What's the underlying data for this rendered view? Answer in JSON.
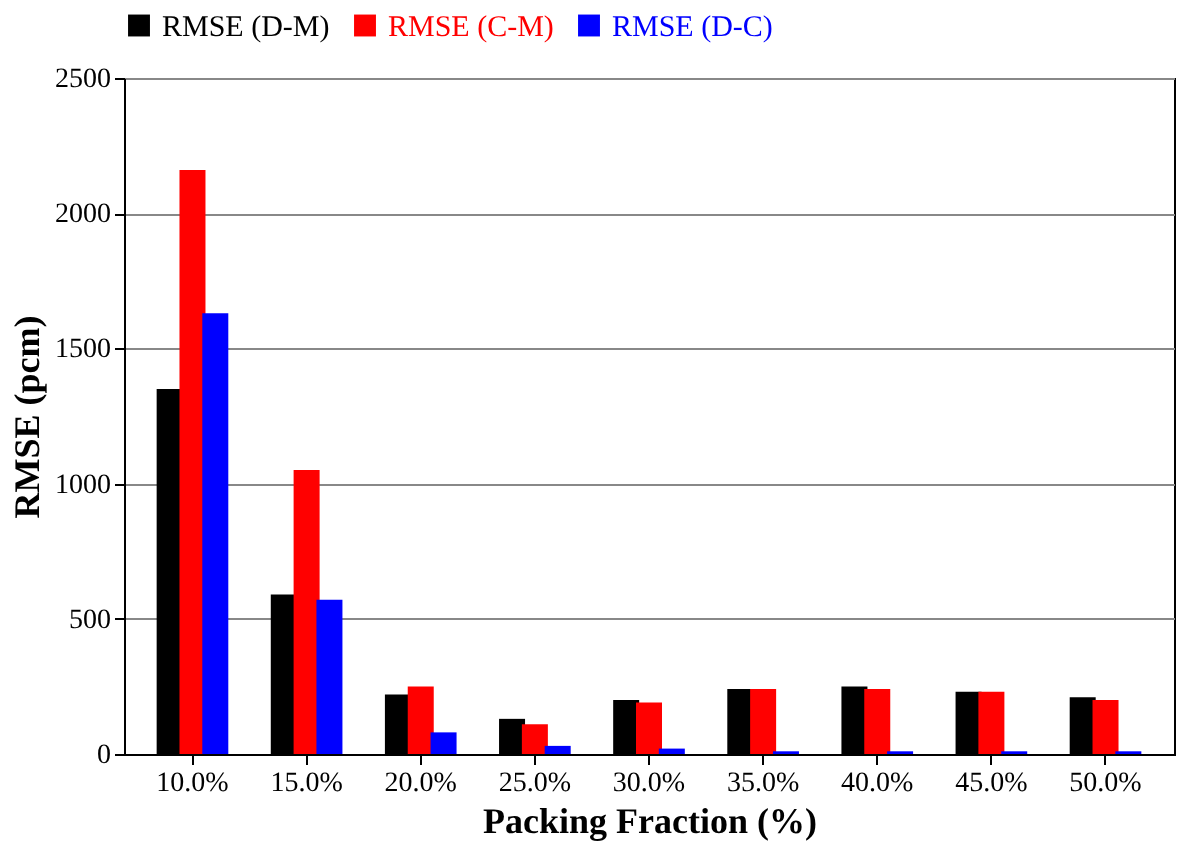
{
  "chart_data": {
    "type": "bar",
    "xlabel": "Packing Fraction (%)",
    "ylabel": "RMSE (pcm)",
    "categories": [
      "10.0%",
      "15.0%",
      "20.0%",
      "25.0%",
      "30.0%",
      "35.0%",
      "40.0%",
      "45.0%",
      "50.0%"
    ],
    "series": [
      {
        "name": "RMSE (D-M)",
        "color": "#000000",
        "values": [
          1350,
          590,
          220,
          130,
          200,
          240,
          250,
          230,
          210
        ]
      },
      {
        "name": "RMSE (C-M)",
        "color": "#ff0000",
        "values": [
          2160,
          1050,
          250,
          110,
          190,
          240,
          240,
          230,
          200
        ]
      },
      {
        "name": "RMSE (D-C)",
        "color": "#0000ff",
        "values": [
          1630,
          570,
          80,
          30,
          20,
          10,
          10,
          10,
          10
        ]
      }
    ],
    "ylim": [
      0,
      2500
    ],
    "yticks": [
      0,
      500,
      1000,
      1500,
      2000,
      2500
    ],
    "grid": "y",
    "legend": "top"
  }
}
